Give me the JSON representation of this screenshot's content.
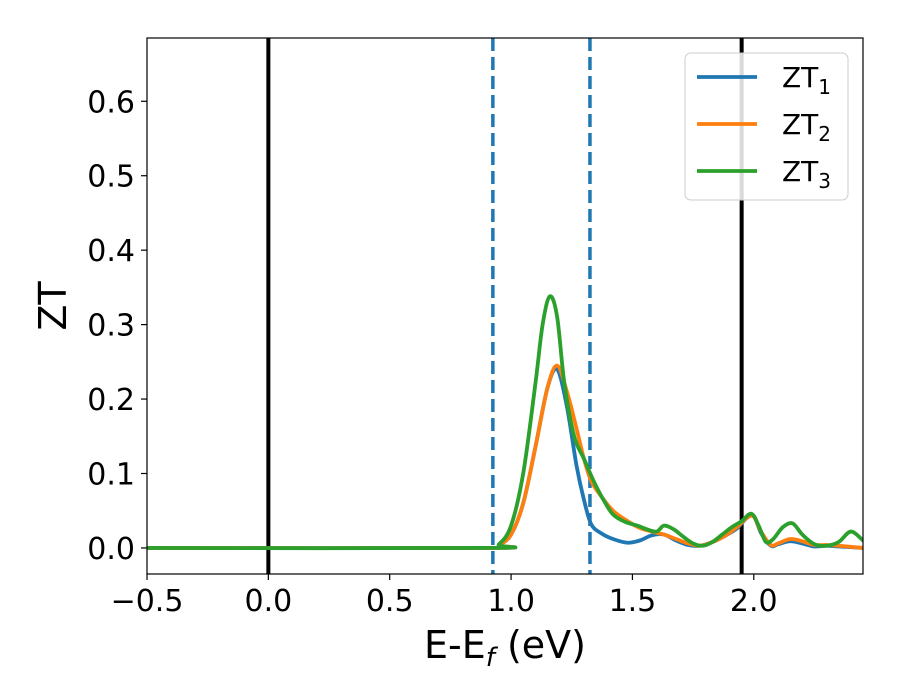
{
  "chart_data": {
    "type": "line",
    "xlabel": "E-E_f (eV)",
    "ylabel": "ZT",
    "xlim": [
      -0.5,
      2.45
    ],
    "ylim": [
      -0.035,
      0.685
    ],
    "xticks": [
      -0.5,
      0.0,
      0.5,
      1.0,
      1.5,
      2.0
    ],
    "xtick_labels": [
      "−0.5",
      "0.0",
      "0.5",
      "1.0",
      "1.5",
      "2.0"
    ],
    "yticks": [
      0.0,
      0.1,
      0.2,
      0.3,
      0.4,
      0.5,
      0.6
    ],
    "ytick_labels": [
      "0.0",
      "0.1",
      "0.2",
      "0.3",
      "0.4",
      "0.5",
      "0.6"
    ],
    "grid": false,
    "legend_position": "top-right",
    "vlines": [
      {
        "x": 0.0,
        "style": "solid",
        "color": "#000000"
      },
      {
        "x": 1.95,
        "style": "solid",
        "color": "#000000"
      },
      {
        "x": 0.925,
        "style": "dashed",
        "color": "#1f77b4"
      },
      {
        "x": 1.325,
        "style": "dashed",
        "color": "#1f77b4"
      }
    ],
    "series": [
      {
        "name": "ZT1",
        "color": "#1f77b4",
        "x": [
          -0.5,
          0.9,
          0.95,
          1.0,
          1.05,
          1.1,
          1.15,
          1.19,
          1.23,
          1.27,
          1.3,
          1.33,
          1.37,
          1.42,
          1.48,
          1.53,
          1.58,
          1.63,
          1.68,
          1.73,
          1.78,
          1.83,
          1.88,
          1.93,
          1.97,
          2.0,
          2.03,
          2.07,
          2.1,
          2.15,
          2.2,
          2.25,
          2.3,
          2.35,
          2.45
        ],
        "y": [
          0.0,
          0.0,
          0.004,
          0.018,
          0.06,
          0.135,
          0.215,
          0.24,
          0.19,
          0.11,
          0.065,
          0.032,
          0.02,
          0.012,
          0.007,
          0.01,
          0.017,
          0.018,
          0.01,
          0.004,
          0.003,
          0.008,
          0.016,
          0.026,
          0.04,
          0.043,
          0.02,
          0.003,
          0.005,
          0.009,
          0.006,
          0.002,
          0.003,
          0.002,
          0.0
        ]
      },
      {
        "name": "ZT2",
        "color": "#ff7f0e",
        "x": [
          -0.5,
          0.9,
          0.95,
          1.0,
          1.05,
          1.1,
          1.15,
          1.19,
          1.23,
          1.27,
          1.3,
          1.33,
          1.37,
          1.42,
          1.48,
          1.53,
          1.58,
          1.63,
          1.68,
          1.73,
          1.78,
          1.83,
          1.88,
          1.93,
          1.97,
          2.0,
          2.03,
          2.07,
          2.1,
          2.15,
          2.2,
          2.25,
          2.3,
          2.35,
          2.45
        ],
        "y": [
          0.0,
          0.0,
          0.004,
          0.018,
          0.06,
          0.135,
          0.215,
          0.245,
          0.21,
          0.16,
          0.12,
          0.09,
          0.07,
          0.05,
          0.036,
          0.027,
          0.022,
          0.018,
          0.012,
          0.006,
          0.003,
          0.008,
          0.016,
          0.028,
          0.04,
          0.042,
          0.022,
          0.004,
          0.006,
          0.012,
          0.009,
          0.004,
          0.004,
          0.003,
          0.0
        ]
      },
      {
        "name": "ZT3",
        "color": "#2ca02c",
        "x": [
          -0.5,
          0.9,
          0.95,
          1.0,
          1.05,
          1.1,
          1.13,
          1.16,
          1.19,
          1.22,
          1.26,
          1.3,
          1.34,
          1.38,
          1.42,
          1.47,
          1.52,
          1.56,
          1.6,
          1.63,
          1.67,
          1.71,
          1.75,
          1.79,
          1.83,
          1.87,
          1.91,
          1.95,
          1.99,
          2.02,
          2.05,
          2.08,
          2.12,
          2.16,
          2.2,
          2.25,
          2.3,
          2.35,
          2.4,
          2.45
        ],
        "y": [
          0.0,
          0.0,
          0.005,
          0.03,
          0.1,
          0.22,
          0.3,
          0.338,
          0.31,
          0.22,
          0.15,
          0.12,
          0.09,
          0.065,
          0.045,
          0.035,
          0.03,
          0.025,
          0.022,
          0.03,
          0.025,
          0.015,
          0.006,
          0.003,
          0.008,
          0.018,
          0.028,
          0.036,
          0.046,
          0.03,
          0.008,
          0.012,
          0.028,
          0.033,
          0.018,
          0.005,
          0.003,
          0.008,
          0.022,
          0.01
        ]
      }
    ]
  },
  "legend": {
    "items": [
      {
        "main": "ZT",
        "sub": "1"
      },
      {
        "main": "ZT",
        "sub": "2"
      },
      {
        "main": "ZT",
        "sub": "3"
      }
    ]
  }
}
